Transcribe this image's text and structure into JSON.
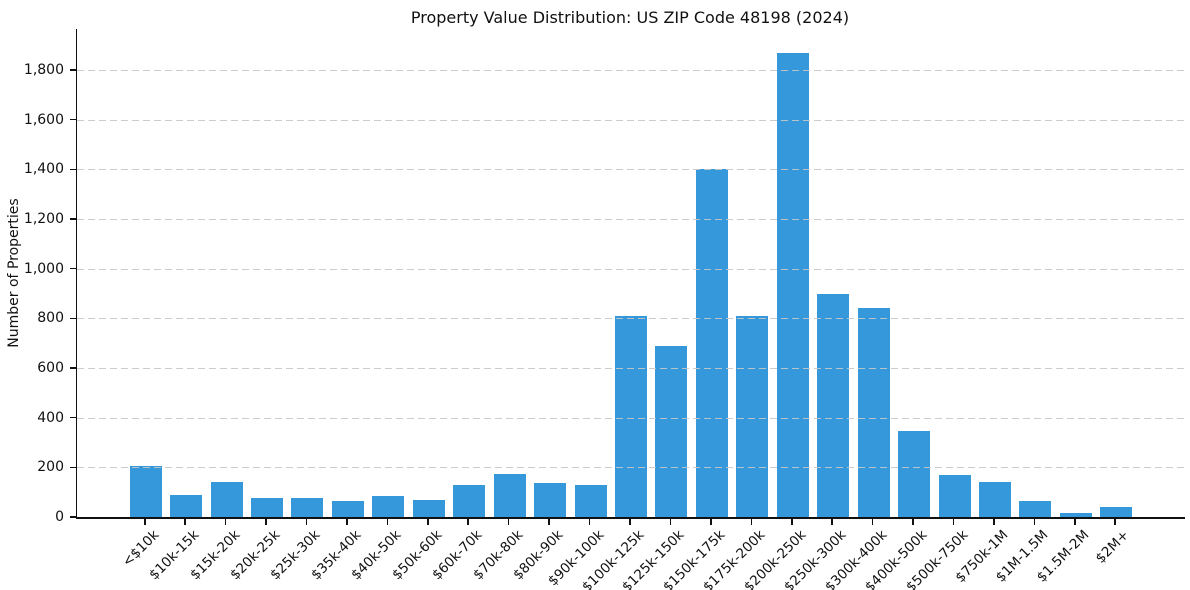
{
  "chart_data": {
    "type": "bar",
    "title": "Property Value Distribution: US ZIP Code 48198 (2024)",
    "xlabel": "",
    "ylabel": "Number of Properties",
    "categories": [
      "<$10k",
      "$10k-15k",
      "$15k-20k",
      "$20k-25k",
      "$25k-30k",
      "$35k-40k",
      "$40k-50k",
      "$50k-60k",
      "$60k-70k",
      "$70k-80k",
      "$80k-90k",
      "$90k-100k",
      "$100k-125k",
      "$125k-150k",
      "$150k-175k",
      "$175k-200k",
      "$200k-250k",
      "$250k-300k",
      "$300k-400k",
      "$400k-500k",
      "$500k-750k",
      "$750k-1M",
      "$1M-1.5M",
      "$1.5M-2M",
      "$2M+"
    ],
    "values": [
      205,
      90,
      140,
      75,
      75,
      65,
      85,
      70,
      130,
      175,
      135,
      130,
      810,
      690,
      1400,
      810,
      1870,
      900,
      840,
      345,
      170,
      140,
      65,
      15,
      40
    ],
    "ytick_values": [
      0,
      200,
      400,
      600,
      800,
      1000,
      1200,
      1400,
      1600,
      1800
    ],
    "ytick_labels": [
      "0",
      "200",
      "400",
      "600",
      "800",
      "1,000",
      "1,200",
      "1,400",
      "1,600",
      "1,800"
    ],
    "ylim": [
      0,
      1965
    ],
    "grid": "horizontal-dashed",
    "legend": "none",
    "colors": {
      "bar": "#3498db",
      "grid": "#c6c6c6",
      "axis": "#111111",
      "text": "#111111",
      "background": "#ffffff"
    }
  }
}
